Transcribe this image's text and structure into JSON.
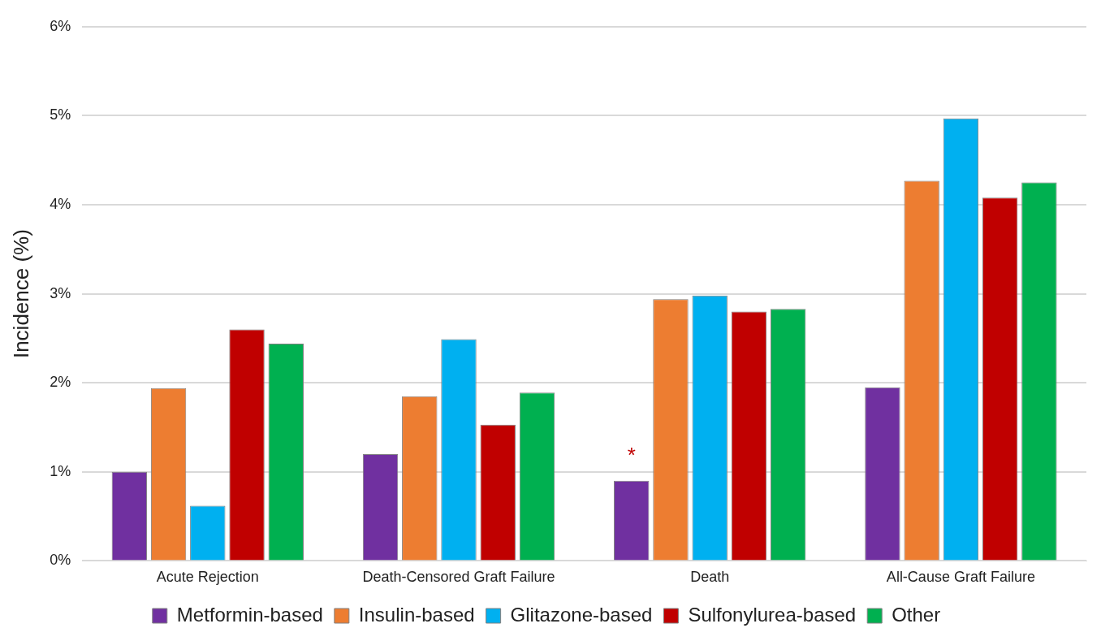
{
  "chart_data": {
    "type": "bar",
    "ylabel": "Incidence (%)",
    "categories": [
      "Acute Rejection",
      "Death-Censored Graft Failure",
      "Death",
      "All-Cause Graft Failure"
    ],
    "series": [
      {
        "name": "Metformin-based",
        "color": "#7030a0",
        "values": [
          1.0,
          1.2,
          0.9,
          1.95
        ]
      },
      {
        "name": "Insulin-based",
        "color": "#ed7d31",
        "values": [
          1.94,
          1.85,
          2.94,
          4.27
        ]
      },
      {
        "name": "Glitazone-based",
        "color": "#00b0f0",
        "values": [
          0.62,
          2.49,
          2.98,
          4.97
        ]
      },
      {
        "name": "Sulfonylurea-based",
        "color": "#c00000",
        "values": [
          2.6,
          1.53,
          2.8,
          4.08
        ]
      },
      {
        "name": "Other",
        "color": "#00b050",
        "values": [
          2.44,
          1.89,
          2.83,
          4.25
        ]
      }
    ],
    "ylim": [
      0,
      6
    ],
    "yticks": [
      {
        "value": 0,
        "label": "0%"
      },
      {
        "value": 1,
        "label": "1%"
      },
      {
        "value": 2,
        "label": "2%"
      },
      {
        "value": 3,
        "label": "3%"
      },
      {
        "value": 4,
        "label": "4%"
      },
      {
        "value": 5,
        "label": "5%"
      },
      {
        "value": 6,
        "label": "6%"
      }
    ],
    "grid": "y",
    "legend": "bottom",
    "annotations": [
      "*"
    ]
  }
}
